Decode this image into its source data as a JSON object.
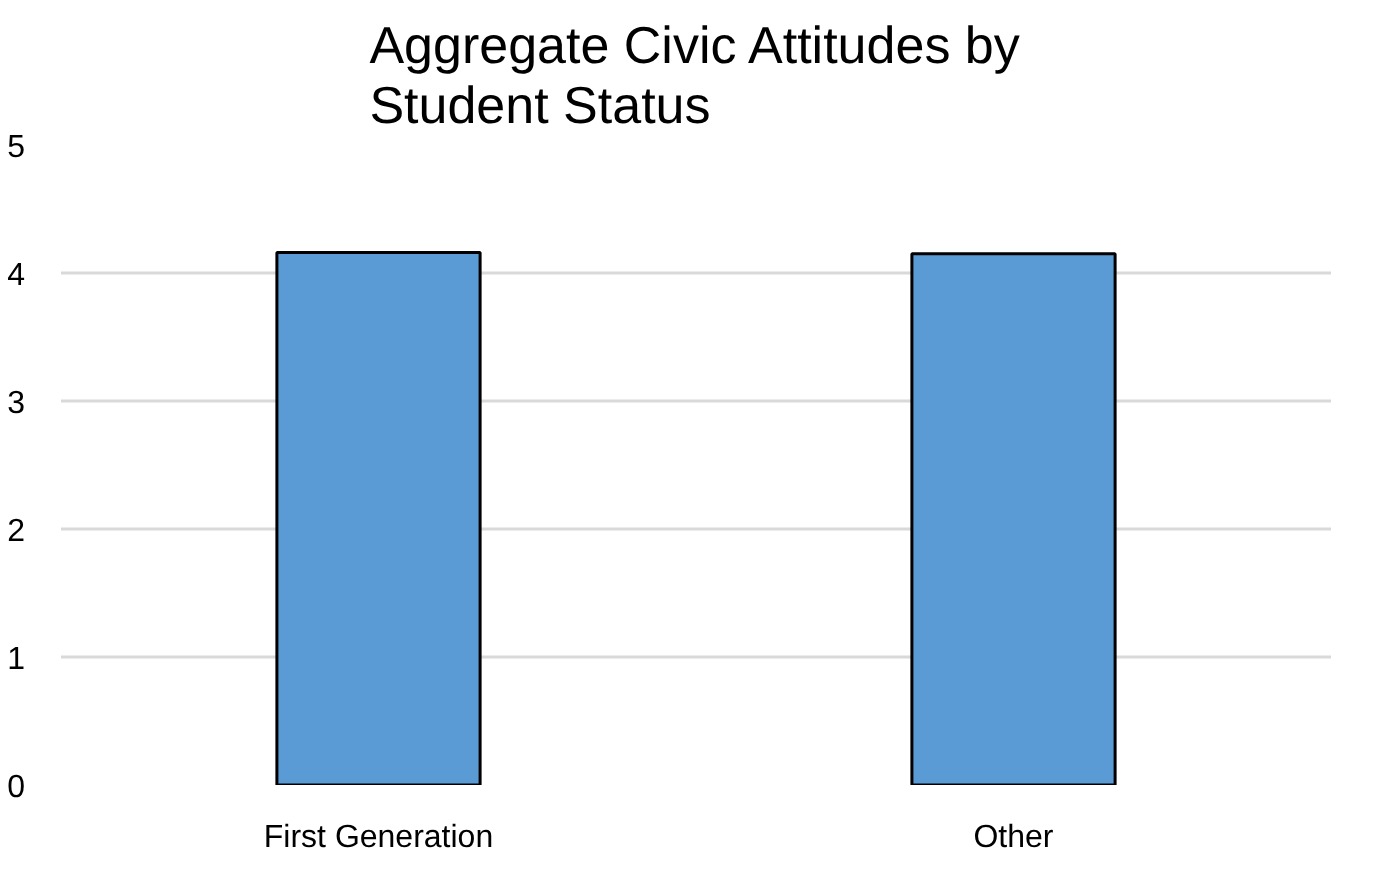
{
  "chart_data": {
    "type": "bar",
    "title": "Aggregate Civic Attitudes by\nStudent Status",
    "categories": [
      "First Generation",
      "Other"
    ],
    "values": [
      4.16,
      4.15
    ],
    "color": "#5b9bd5",
    "ylim": [
      0,
      5
    ],
    "yticks": [
      0,
      1,
      2,
      3,
      4,
      5
    ],
    "grid": "y"
  }
}
